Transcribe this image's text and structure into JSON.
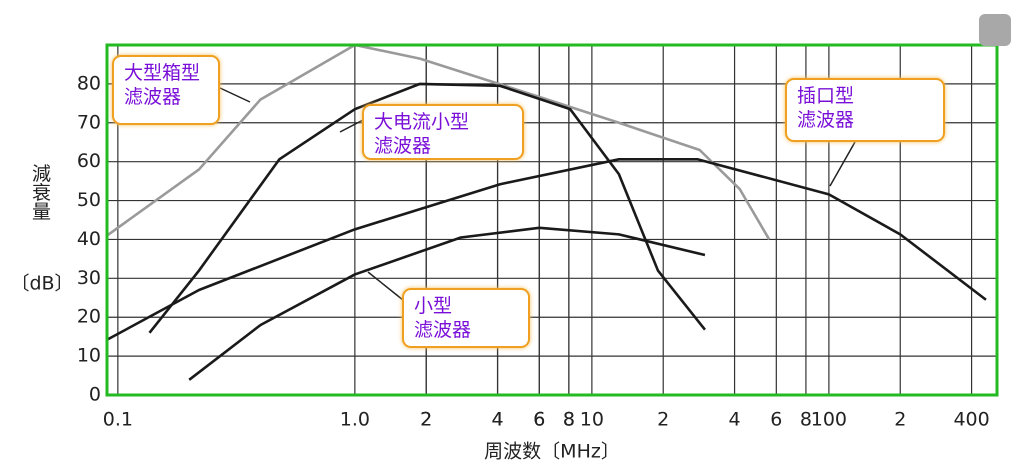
{
  "chart_data": {
    "type": "line",
    "xlabel": "周波数〔MHz〕",
    "ylabel": "減衰量",
    "yunit": "〔dB〕",
    "xscale": "log",
    "xlim": [
      0.09,
      512
    ],
    "ylim": [
      0,
      90
    ],
    "grid": true,
    "border_color": "#22bb22",
    "xticks": [
      0.1,
      2,
      4,
      6,
      8,
      {
        "value": 1,
        "label": "1.0"
      },
      {
        "value": 2,
        "label": "2"
      },
      {
        "value": 4,
        "label": "4"
      },
      {
        "value": 6,
        "label": "6"
      },
      {
        "value": 8,
        "label": "8"
      },
      10,
      {
        "value": 20,
        "label": "2"
      },
      {
        "value": 40,
        "label": "4"
      },
      {
        "value": 60,
        "label": "6"
      },
      {
        "value": 80,
        "label": "8"
      },
      100,
      {
        "value": 200,
        "label": "2"
      },
      400
    ],
    "yticks": [
      0,
      10,
      20,
      30,
      40,
      50,
      60,
      70,
      80
    ],
    "series": [
      {
        "name": "大型箱型\n滤波器",
        "color": "#9a9a9a",
        "x": [
          0.09,
          0.22,
          0.4,
          1.0,
          1.88,
          5.5,
          13,
          28.5,
          42,
          56
        ],
        "values": [
          41,
          58,
          76,
          90,
          86.5,
          77.4,
          70,
          63,
          53,
          40
        ]
      },
      {
        "name": "大电流小型\n滤波器",
        "color": "#1a1a1a",
        "x": [
          0.136,
          0.22,
          0.48,
          1.0,
          1.88,
          4.1,
          8.1,
          13,
          19,
          30
        ],
        "values": [
          16,
          32,
          60.6,
          73.5,
          80,
          79.5,
          73.5,
          56.8,
          32,
          16.8
        ]
      },
      {
        "name": "插口型\n滤波器",
        "color": "#1a1a1a",
        "x": [
          0.09,
          0.22,
          1.0,
          4.1,
          13,
          28,
          100,
          200,
          460
        ],
        "values": [
          14.2,
          27,
          42.6,
          54.2,
          60.6,
          60.6,
          51.6,
          41.3,
          24.5
        ]
      },
      {
        "name": "小型\n滤波器",
        "color": "#1a1a1a",
        "x": [
          0.2,
          0.4,
          1.0,
          2.8,
          6,
          13,
          30
        ],
        "values": [
          3.9,
          18,
          31,
          40.5,
          43,
          41.3,
          36
        ]
      }
    ]
  }
}
